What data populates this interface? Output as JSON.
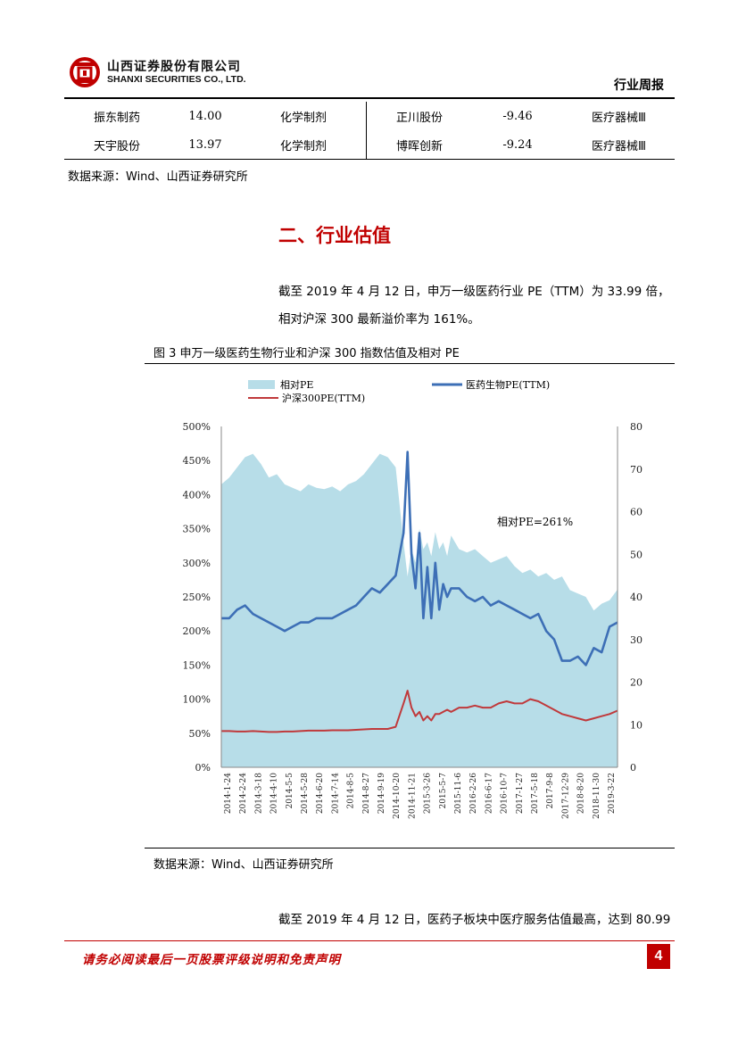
{
  "header": {
    "company_cn": "山西证券股份有限公司",
    "company_en": "SHANXI SECURITIES CO., LTD.",
    "report_type": "行业周报"
  },
  "table": {
    "rows": [
      {
        "name1": "振东制药",
        "val1": "14.00",
        "ind1": "化学制剂",
        "name2": "正川股份",
        "val2": "-9.46",
        "ind2": "医疗器械Ⅲ"
      },
      {
        "name1": "天宇股份",
        "val1": "13.97",
        "ind1": "化学制剂",
        "name2": "博晖创新",
        "val2": "-9.24",
        "ind2": "医疗器械Ⅲ"
      }
    ],
    "source": "数据来源：Wind、山西证券研究所"
  },
  "section": {
    "heading": "二、行业估值",
    "para1_line1": "截至 2019 年 4 月 12 日，申万一级医药行业 PE（TTM）为 33.99 倍，",
    "para1_line2": "相对沪深 300 最新溢价率为 161%。"
  },
  "figure": {
    "title": "图 3  申万一级医药生物行业和沪深 300 指数估值及相对 PE",
    "source": "数据来源：Wind、山西证券研究所"
  },
  "para2": "截至 2019 年 4 月 12 日，医药子板块中医疗服务估值最高，达到 80.99",
  "footer": {
    "disclaimer": "请务必阅读最后一页股票评级说明和免责声明",
    "page": "4"
  },
  "colors": {
    "accent_red": "#c00000",
    "relative_pe_fill": "#b7dde8",
    "pharma_line": "#3d6fb6",
    "hs300_line": "#c0393b"
  },
  "chart_data": {
    "type": "area",
    "title": "",
    "legend": [
      {
        "name": "相对PE",
        "type": "area",
        "color": "#b7dde8"
      },
      {
        "name": "医药生物PE(TTM)",
        "type": "line",
        "color": "#3d6fb6"
      },
      {
        "name": "沪深300PE(TTM)",
        "type": "line",
        "color": "#c0393b"
      }
    ],
    "legend_position": "top",
    "annotation": "相对PE=261%",
    "y_left": {
      "min": 0,
      "max": 500,
      "ticks": [
        "0%",
        "50%",
        "100%",
        "150%",
        "200%",
        "250%",
        "300%",
        "350%",
        "400%",
        "450%",
        "500%"
      ]
    },
    "y_right": {
      "min": 0,
      "max": 80,
      "ticks": [
        "0",
        "10",
        "20",
        "30",
        "40",
        "50",
        "60",
        "70",
        "80"
      ]
    },
    "x_tick_labels": [
      "2014-1-24",
      "2014-2-24",
      "2014-3-18",
      "2014-4-10",
      "2014-5-5",
      "2014-5-28",
      "2014-6-20",
      "2014-7-14",
      "2014-8-5",
      "2014-8-27",
      "2014-9-19",
      "2014-10-20",
      "2014-11-21",
      "2015-3-26",
      "2015-5-7",
      "2015-11-6",
      "2016-2-26",
      "2016-6-17",
      "2016-10-7",
      "2017-1-27",
      "2017-5-18",
      "2017-9-8",
      "2017-12-29",
      "2018-8-20",
      "2018-11-30",
      "2019-3-22"
    ],
    "x": [
      0,
      0.02,
      0.04,
      0.06,
      0.08,
      0.1,
      0.12,
      0.14,
      0.16,
      0.18,
      0.2,
      0.22,
      0.24,
      0.26,
      0.28,
      0.3,
      0.32,
      0.34,
      0.36,
      0.38,
      0.4,
      0.42,
      0.44,
      0.46,
      0.47,
      0.48,
      0.49,
      0.5,
      0.51,
      0.52,
      0.53,
      0.54,
      0.55,
      0.56,
      0.57,
      0.58,
      0.6,
      0.62,
      0.64,
      0.66,
      0.68,
      0.7,
      0.72,
      0.74,
      0.76,
      0.78,
      0.8,
      0.82,
      0.84,
      0.86,
      0.88,
      0.9,
      0.92,
      0.94,
      0.96,
      0.98,
      1.0
    ],
    "series": [
      {
        "name": "相对PE",
        "axis": "left",
        "values": [
          415,
          425,
          440,
          455,
          460,
          445,
          425,
          430,
          415,
          410,
          405,
          415,
          410,
          408,
          412,
          405,
          415,
          420,
          430,
          445,
          460,
          455,
          440,
          330,
          280,
          320,
          300,
          350,
          320,
          330,
          310,
          345,
          320,
          330,
          310,
          340,
          320,
          315,
          320,
          310,
          300,
          305,
          310,
          295,
          285,
          290,
          280,
          285,
          275,
          280,
          260,
          255,
          250,
          230,
          240,
          245,
          261
        ]
      },
      {
        "name": "医药生物PE(TTM)",
        "axis": "right",
        "values": [
          35,
          35,
          37,
          38,
          36,
          35,
          34,
          33,
          32,
          33,
          34,
          34,
          35,
          35,
          35,
          36,
          37,
          38,
          40,
          42,
          41,
          43,
          45,
          55,
          74,
          50,
          42,
          55,
          35,
          47,
          35,
          48,
          37,
          43,
          40,
          42,
          42,
          40,
          39,
          40,
          38,
          39,
          38,
          37,
          36,
          35,
          36,
          32,
          30,
          25,
          25,
          26,
          24,
          28,
          27,
          33,
          34
        ]
      },
      {
        "name": "沪深300PE(TTM)",
        "axis": "right",
        "values": [
          8.5,
          8.5,
          8.4,
          8.4,
          8.5,
          8.4,
          8.3,
          8.3,
          8.4,
          8.4,
          8.5,
          8.6,
          8.6,
          8.6,
          8.7,
          8.7,
          8.7,
          8.8,
          8.9,
          9.0,
          9.0,
          9.0,
          9.5,
          15,
          18,
          14,
          12,
          13,
          11,
          12,
          11,
          12.5,
          12.5,
          13,
          13.5,
          13,
          14,
          14,
          14.5,
          14,
          14,
          15,
          15.5,
          15,
          15,
          16,
          15.5,
          14.5,
          13.5,
          12.5,
          12,
          11.5,
          11,
          11.5,
          12,
          12.5,
          13.3
        ]
      }
    ]
  }
}
